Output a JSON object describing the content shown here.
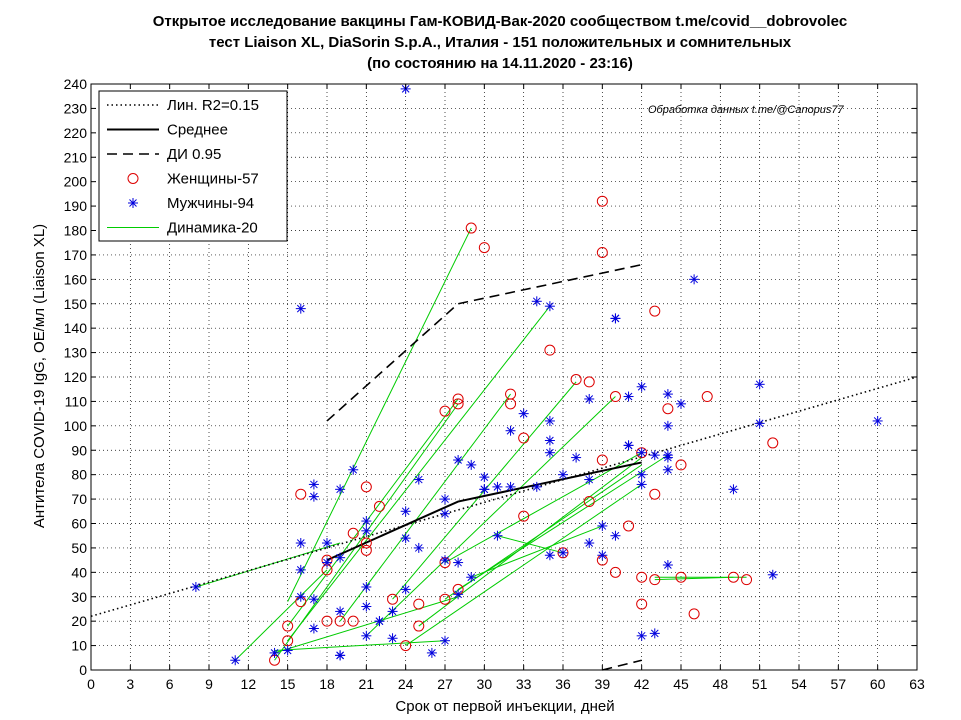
{
  "chart_data": {
    "type": "scatter",
    "title_lines": [
      "Открытое исследование вакцины Гам-КОВИД-Вак-2020 сообществом t.me/covid__dobrovolec",
      "тест Liaison XL, DiaSorin S.p.A., Италия - 151 положительных и сомнительных",
      "(по состоянию на 14.11.2020 - 23:16)"
    ],
    "xlabel": "Срок от первой инъекции, дней",
    "ylabel": "Антитела COVID-19 IgG, ОЕ/мл (Liaison XL)",
    "credit": "Обработка данных t.me/@Canopus77",
    "xlim": [
      0,
      63
    ],
    "ylim": [
      0,
      240
    ],
    "xticks": [
      0,
      3,
      6,
      9,
      12,
      15,
      18,
      21,
      24,
      27,
      30,
      33,
      36,
      39,
      42,
      45,
      48,
      51,
      54,
      57,
      60,
      63
    ],
    "yticks": [
      0,
      10,
      20,
      30,
      40,
      50,
      60,
      70,
      80,
      90,
      100,
      110,
      120,
      130,
      140,
      150,
      160,
      170,
      180,
      190,
      200,
      210,
      220,
      230,
      240
    ],
    "grid": true,
    "legend_position": "top-left",
    "legend": [
      {
        "label": "Лин. R2=0.15",
        "style": "dotted"
      },
      {
        "label": "Среднее",
        "style": "solid"
      },
      {
        "label": "ДИ 0.95",
        "style": "dashed"
      },
      {
        "label": "Женщины-57",
        "style": "circle"
      },
      {
        "label": "Мужчины-94",
        "style": "star"
      },
      {
        "label": "Динамика-20",
        "style": "green"
      }
    ],
    "series": [
      {
        "name": "Лин. R2=0.15",
        "type": "line",
        "style": "dotted",
        "color": "#000000",
        "x": [
          0,
          63
        ],
        "y": [
          22,
          120
        ]
      },
      {
        "name": "Среднее",
        "type": "line",
        "style": "solid",
        "color": "#000000",
        "x": [
          18,
          28,
          42
        ],
        "y": [
          45,
          69,
          85
        ]
      },
      {
        "name": "ДИ 0.95 верх",
        "type": "line",
        "style": "dashed",
        "color": "#000000",
        "x": [
          18,
          28,
          42
        ],
        "y": [
          102,
          150,
          166
        ]
      },
      {
        "name": "ДИ 0.95 низ",
        "type": "line",
        "style": "dashed",
        "color": "#000000",
        "x": [
          39,
          42
        ],
        "y": [
          0,
          4
        ]
      },
      {
        "name": "Женщины-57",
        "type": "scatter",
        "marker": "circle",
        "color": "#dd0000",
        "points": [
          [
            14,
            4
          ],
          [
            15,
            12
          ],
          [
            15,
            18
          ],
          [
            16,
            28
          ],
          [
            16,
            72
          ],
          [
            18,
            20
          ],
          [
            18,
            41
          ],
          [
            18,
            45
          ],
          [
            19,
            20
          ],
          [
            20,
            20
          ],
          [
            20,
            56
          ],
          [
            21,
            49
          ],
          [
            21,
            52
          ],
          [
            21,
            75
          ],
          [
            22,
            67
          ],
          [
            23,
            29
          ],
          [
            24,
            10
          ],
          [
            25,
            18
          ],
          [
            25,
            27
          ],
          [
            27,
            29
          ],
          [
            27,
            44
          ],
          [
            27,
            106
          ],
          [
            28,
            33
          ],
          [
            28,
            109
          ],
          [
            28,
            111
          ],
          [
            29,
            181
          ],
          [
            30,
            173
          ],
          [
            32,
            109
          ],
          [
            32,
            113
          ],
          [
            33,
            95
          ],
          [
            33,
            63
          ],
          [
            35,
            131
          ],
          [
            36,
            48
          ],
          [
            37,
            119
          ],
          [
            38,
            118
          ],
          [
            38,
            69
          ],
          [
            39,
            86
          ],
          [
            39,
            45
          ],
          [
            39,
            171
          ],
          [
            39,
            192
          ],
          [
            40,
            40
          ],
          [
            41,
            59
          ],
          [
            42,
            38
          ],
          [
            42,
            27
          ],
          [
            42,
            89
          ],
          [
            43,
            37
          ],
          [
            43,
            72
          ],
          [
            43,
            147
          ],
          [
            44,
            107
          ],
          [
            45,
            84
          ],
          [
            45,
            38
          ],
          [
            46,
            23
          ],
          [
            47,
            112
          ],
          [
            49,
            38
          ],
          [
            50,
            37
          ],
          [
            52,
            93
          ],
          [
            40,
            112
          ]
        ]
      },
      {
        "name": "Мужчины-94",
        "type": "scatter",
        "marker": "star",
        "color": "#0000dd",
        "points": [
          [
            8,
            34
          ],
          [
            11,
            4
          ],
          [
            14,
            7
          ],
          [
            16,
            148
          ],
          [
            16,
            52
          ],
          [
            16,
            30
          ],
          [
            16,
            41
          ],
          [
            17,
            76
          ],
          [
            17,
            71
          ],
          [
            17,
            29
          ],
          [
            17,
            17
          ],
          [
            18,
            44
          ],
          [
            18,
            52
          ],
          [
            19,
            74
          ],
          [
            19,
            24
          ],
          [
            19,
            6
          ],
          [
            19,
            46
          ],
          [
            20,
            82
          ],
          [
            21,
            61
          ],
          [
            21,
            57
          ],
          [
            21,
            34
          ],
          [
            21,
            26
          ],
          [
            21,
            14
          ],
          [
            22,
            20
          ],
          [
            23,
            24
          ],
          [
            24,
            238
          ],
          [
            24,
            65
          ],
          [
            24,
            54
          ],
          [
            24,
            33
          ],
          [
            25,
            78
          ],
          [
            25,
            50
          ],
          [
            26,
            7
          ],
          [
            27,
            70
          ],
          [
            27,
            64
          ],
          [
            27,
            45
          ],
          [
            27,
            12
          ],
          [
            28,
            86
          ],
          [
            28,
            44
          ],
          [
            28,
            31
          ],
          [
            29,
            84
          ],
          [
            29,
            38
          ],
          [
            30,
            79
          ],
          [
            30,
            74
          ],
          [
            31,
            75
          ],
          [
            31,
            55
          ],
          [
            32,
            98
          ],
          [
            33,
            105
          ],
          [
            34,
            151
          ],
          [
            34,
            75
          ],
          [
            35,
            149
          ],
          [
            35,
            102
          ],
          [
            35,
            94
          ],
          [
            35,
            89
          ],
          [
            35,
            47
          ],
          [
            36,
            48
          ],
          [
            37,
            87
          ],
          [
            38,
            111
          ],
          [
            38,
            78
          ],
          [
            38,
            52
          ],
          [
            39,
            59
          ],
          [
            39,
            47
          ],
          [
            40,
            144
          ],
          [
            40,
            55
          ],
          [
            41,
            112
          ],
          [
            41,
            92
          ],
          [
            42,
            116
          ],
          [
            42,
            89
          ],
          [
            42,
            76
          ],
          [
            42,
            14
          ],
          [
            43,
            15
          ],
          [
            43,
            88
          ],
          [
            44,
            113
          ],
          [
            44,
            100
          ],
          [
            44,
            88
          ],
          [
            44,
            82
          ],
          [
            44,
            43
          ],
          [
            45,
            109
          ],
          [
            46,
            160
          ],
          [
            49,
            74
          ],
          [
            51,
            117
          ],
          [
            51,
            101
          ],
          [
            52,
            39
          ],
          [
            60,
            102
          ],
          [
            41,
            92
          ],
          [
            42,
            80
          ],
          [
            40,
            144
          ],
          [
            36,
            80
          ],
          [
            30,
            74
          ],
          [
            22,
            20
          ],
          [
            15,
            8
          ],
          [
            19,
            6
          ],
          [
            23,
            13
          ],
          [
            32,
            75
          ],
          [
            44,
            87
          ]
        ]
      },
      {
        "name": "Динамика-20",
        "type": "lines",
        "color": "#00cc00",
        "segments": [
          [
            [
              15,
              28
            ],
            [
              29,
              181
            ]
          ],
          [
            [
              8,
              34
            ],
            [
              19,
              52
            ]
          ],
          [
            [
              11,
              4
            ],
            [
              18,
              41
            ]
          ],
          [
            [
              14,
              4
            ],
            [
              28,
              109
            ]
          ],
          [
            [
              15,
              12
            ],
            [
              35,
              149
            ]
          ],
          [
            [
              15,
              18
            ],
            [
              28,
              111
            ]
          ],
          [
            [
              14,
              7
            ],
            [
              28,
              30
            ]
          ],
          [
            [
              19,
              20
            ],
            [
              32,
              113
            ]
          ],
          [
            [
              21,
              14
            ],
            [
              40,
              112
            ]
          ],
          [
            [
              23,
              29
            ],
            [
              37,
              118
            ]
          ],
          [
            [
              24,
              10
            ],
            [
              42,
              76
            ]
          ],
          [
            [
              25,
              18
            ],
            [
              42,
              87
            ]
          ],
          [
            [
              27,
              29
            ],
            [
              42,
              84
            ]
          ],
          [
            [
              28,
              33
            ],
            [
              44,
              88
            ]
          ],
          [
            [
              27,
              44
            ],
            [
              42,
              89
            ]
          ],
          [
            [
              29,
              38
            ],
            [
              39,
              59
            ]
          ],
          [
            [
              31,
              55
            ],
            [
              36,
              48
            ]
          ],
          [
            [
              43,
              37
            ],
            [
              49,
              38
            ]
          ],
          [
            [
              43,
              38
            ],
            [
              50,
              38
            ]
          ],
          [
            [
              14,
              8
            ],
            [
              27,
              12
            ]
          ]
        ]
      }
    ]
  }
}
